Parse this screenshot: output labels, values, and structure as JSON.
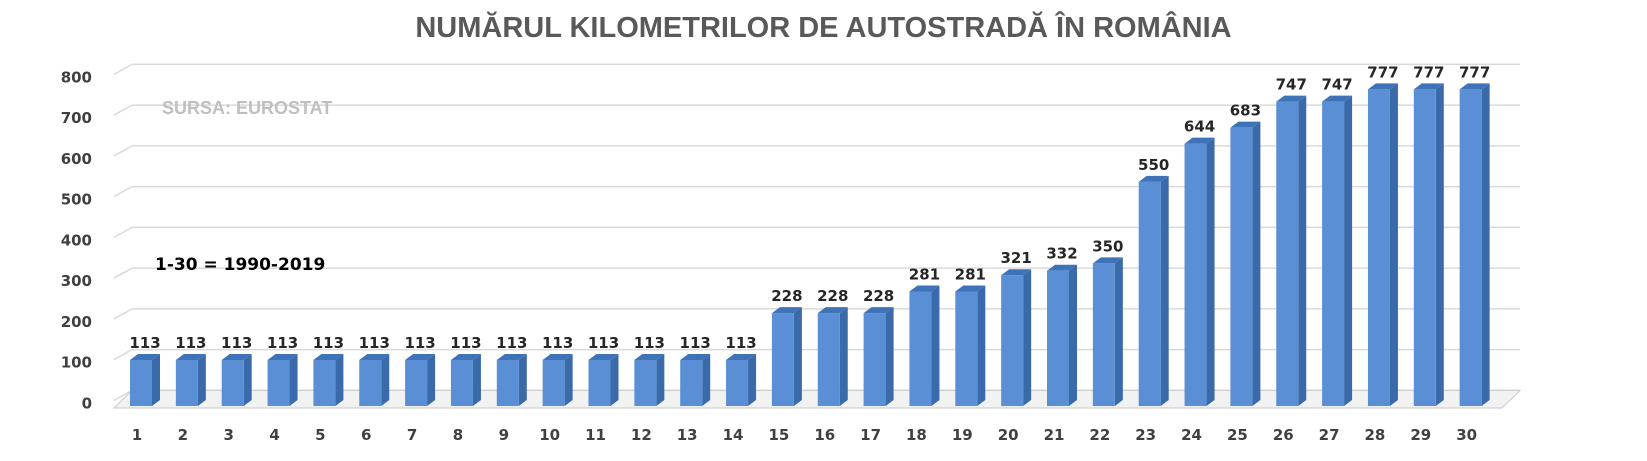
{
  "chart_data": {
    "type": "bar",
    "title": "NUMĂRUL KILOMETRILOR DE AUTOSTRADĂ ÎN ROMÂNIA",
    "source_note": "SURSA: EUROSTAT",
    "range_note": "1-30 = 1990-2019",
    "categories": [
      "1",
      "2",
      "3",
      "4",
      "5",
      "6",
      "7",
      "8",
      "9",
      "10",
      "11",
      "12",
      "13",
      "14",
      "15",
      "16",
      "17",
      "18",
      "19",
      "20",
      "21",
      "22",
      "23",
      "24",
      "25",
      "26",
      "27",
      "28",
      "29",
      "30"
    ],
    "values": [
      113,
      113,
      113,
      113,
      113,
      113,
      113,
      113,
      113,
      113,
      113,
      113,
      113,
      113,
      228,
      228,
      228,
      281,
      281,
      321,
      332,
      350,
      550,
      644,
      683,
      747,
      747,
      777,
      777,
      777
    ],
    "y_ticks": [
      0,
      100,
      200,
      300,
      400,
      500,
      600,
      700,
      800
    ],
    "ylim": [
      0,
      800
    ],
    "grid": true,
    "legend": "none",
    "bar_style": "3d",
    "colors": {
      "front": "#5a8fd6",
      "side": "#3a6aaa",
      "top": "#3f73b8",
      "grid": "#d9d9d9",
      "floor": "#c8c8c8"
    }
  }
}
